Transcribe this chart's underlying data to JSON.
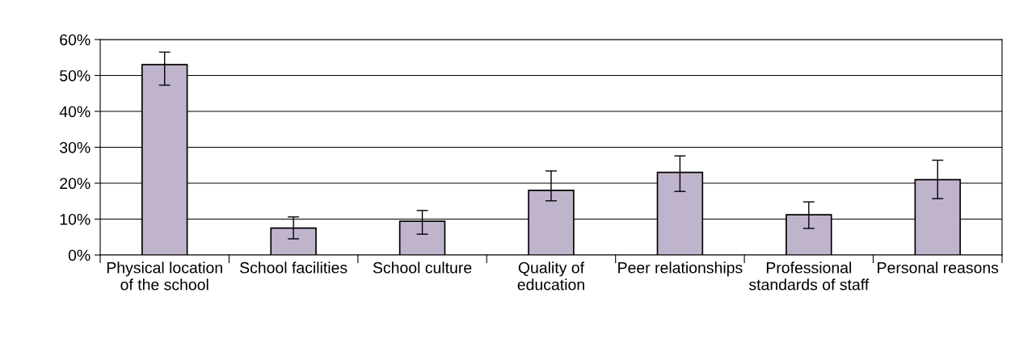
{
  "chart_data": {
    "type": "bar",
    "categories": [
      "Physical location of the school",
      "School facilities",
      "School culture",
      "Quality of education",
      "Peer relationships",
      "Professional standards of staff",
      "Personal reasons"
    ],
    "values": [
      53,
      7.5,
      9.4,
      18,
      23,
      11.2,
      21
    ],
    "errors": [
      [
        47.3,
        56.5
      ],
      [
        4.5,
        10.6
      ],
      [
        5.8,
        12.4
      ],
      [
        15.1,
        23.4
      ],
      [
        17.7,
        27.6
      ],
      [
        7.4,
        14.8
      ],
      [
        15.7,
        26.4
      ]
    ],
    "color": "#c0b4cc",
    "ylim": [
      0,
      60
    ],
    "yticks": [
      {
        "value": 0,
        "label": "0%"
      },
      {
        "value": 10,
        "label": "10%"
      },
      {
        "value": 20,
        "label": "20%"
      },
      {
        "value": 30,
        "label": "30%"
      },
      {
        "value": 40,
        "label": "40%"
      },
      {
        "value": 50,
        "label": "50%"
      },
      {
        "value": 60,
        "label": "60%"
      }
    ],
    "grid": "y"
  }
}
